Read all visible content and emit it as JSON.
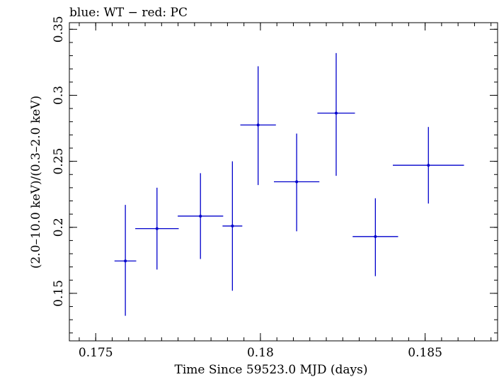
{
  "chart_data": {
    "type": "scatter",
    "title": "blue: WT − red: PC",
    "xlabel": "Time Since 59523.0 MJD (days)",
    "ylabel": "(2.0–10.0 keV)/(0.3–2.0 keV)",
    "xlim": [
      0.1742,
      0.1872
    ],
    "ylim": [
      0.114,
      0.355
    ],
    "xticks": [
      {
        "value": 0.175,
        "label": "0.175"
      },
      {
        "value": 0.18,
        "label": "0.18"
      },
      {
        "value": 0.185,
        "label": "0.185"
      }
    ],
    "yticks": [
      {
        "value": 0.15,
        "label": "0.15"
      },
      {
        "value": 0.2,
        "label": "0.2"
      },
      {
        "value": 0.25,
        "label": "0.25"
      },
      {
        "value": 0.3,
        "label": "0.3"
      },
      {
        "value": 0.35,
        "label": "0.35"
      }
    ],
    "grid": false,
    "series": [
      {
        "color": "#0000cc",
        "points": [
          {
            "x": 0.1759,
            "y": 0.1745,
            "xerr": 0.00033,
            "ylo": 0.133,
            "yhi": 0.217
          },
          {
            "x": 0.17686,
            "y": 0.199,
            "xerr": 0.00066,
            "ylo": 0.168,
            "yhi": 0.23
          },
          {
            "x": 0.17818,
            "y": 0.2085,
            "xerr": 0.00069,
            "ylo": 0.176,
            "yhi": 0.241
          },
          {
            "x": 0.17915,
            "y": 0.201,
            "xerr": 0.0003,
            "ylo": 0.152,
            "yhi": 0.25
          },
          {
            "x": 0.17993,
            "y": 0.2775,
            "xerr": 0.00054,
            "ylo": 0.232,
            "yhi": 0.322
          },
          {
            "x": 0.1811,
            "y": 0.2345,
            "xerr": 0.00069,
            "ylo": 0.197,
            "yhi": 0.271
          },
          {
            "x": 0.1823,
            "y": 0.2865,
            "xerr": 0.00057,
            "ylo": 0.239,
            "yhi": 0.332
          },
          {
            "x": 0.18349,
            "y": 0.193,
            "xerr": 0.00069,
            "ylo": 0.163,
            "yhi": 0.222
          },
          {
            "x": 0.1851,
            "y": 0.247,
            "xerr": 0.00108,
            "ylo": 0.218,
            "yhi": 0.276
          }
        ]
      }
    ]
  }
}
